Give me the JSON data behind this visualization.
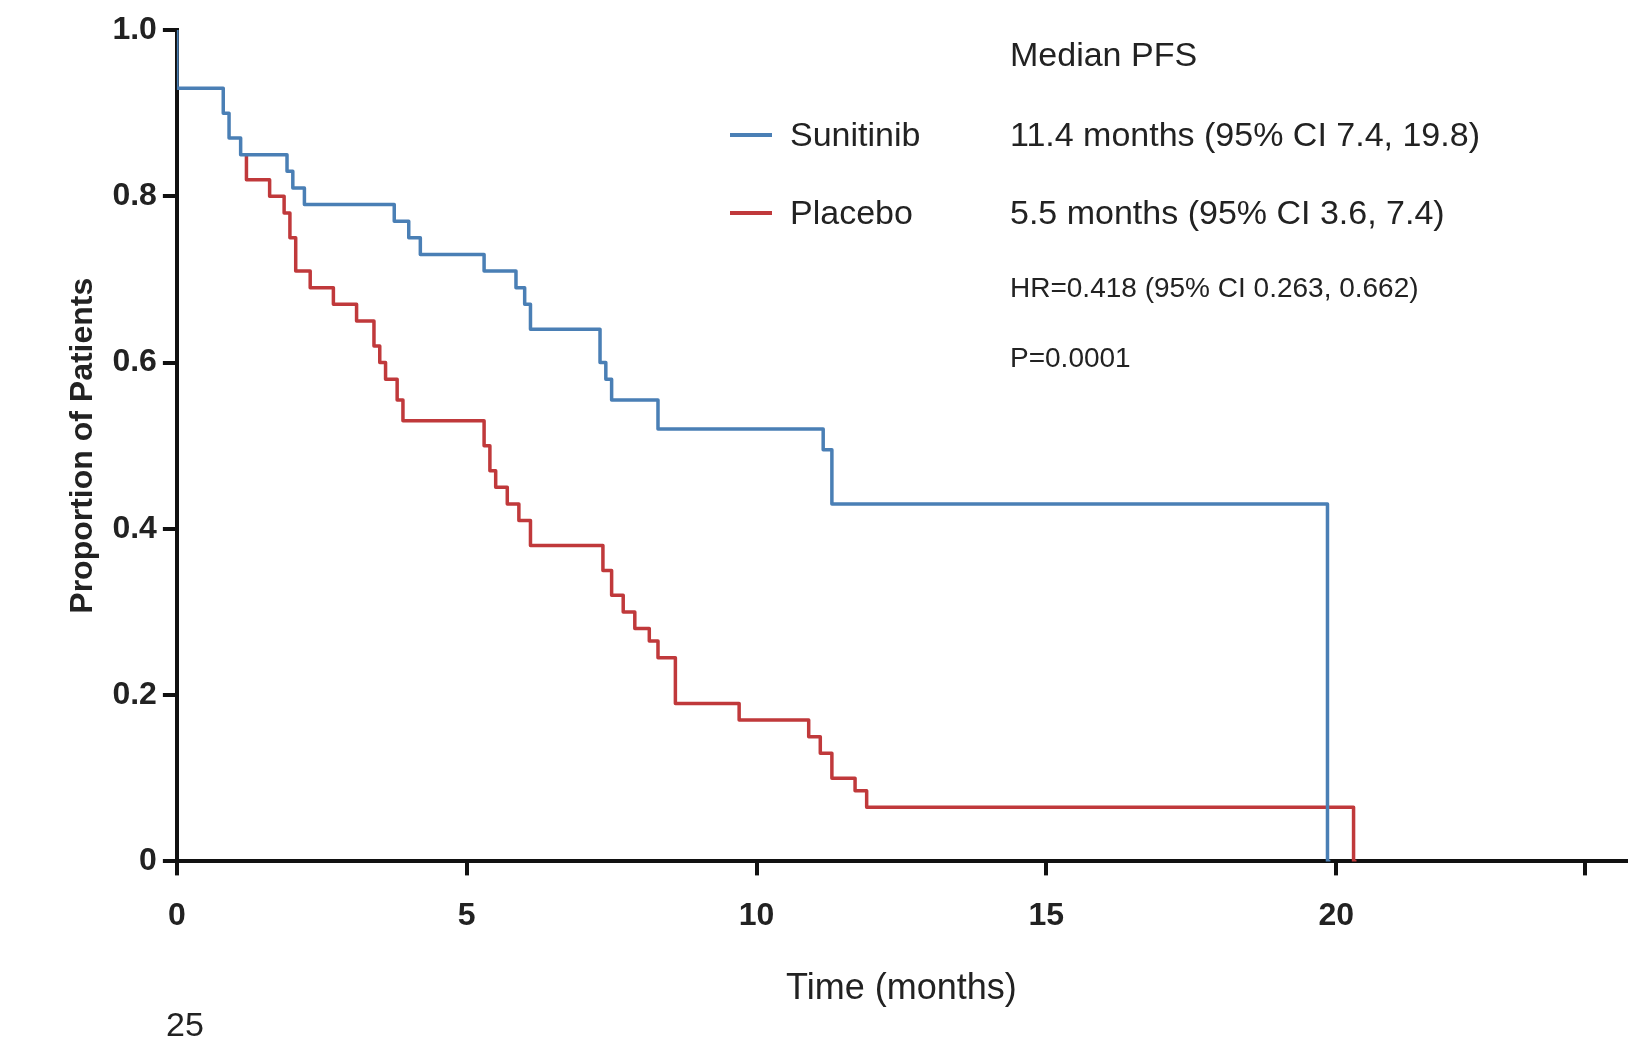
{
  "chart_data": {
    "type": "step",
    "xlabel": "Time (months)",
    "ylabel": "Proportion of Patients",
    "xlim": [
      0,
      25
    ],
    "xticks": [
      0,
      5,
      10,
      15,
      20,
      {
        "value": 24.3,
        "label": null
      }
    ],
    "ylim": [
      0,
      1
    ],
    "yticks": [
      0,
      0.2,
      0.4,
      0.6,
      0.8,
      {
        "value": 1,
        "label": "1.0"
      }
    ],
    "legend": "top",
    "grid": false,
    "series": [
      {
        "name": "Sunitinib",
        "color": "#4a7fb5",
        "x": [
          0,
          0.8,
          0.9,
          1.1,
          1.9,
          2.0,
          2.2,
          3.75,
          4.0,
          4.2,
          5.3,
          5.85,
          6.0,
          6.1,
          7.3,
          7.4,
          7.5,
          8.3,
          11.15,
          11.3,
          13.65,
          19.85,
          19.9
        ],
        "values": [
          1,
          0.93,
          0.9,
          0.87,
          0.85,
          0.83,
          0.81,
          0.79,
          0.77,
          0.75,
          0.73,
          0.71,
          0.69,
          0.67,
          0.64,
          0.6,
          0.58,
          0.555,
          0.52,
          0.495,
          0.43,
          0.43,
          0
        ]
      },
      {
        "name": "Placebo",
        "color": "#c0393b",
        "x": [
          1.2,
          1.6,
          1.85,
          1.95,
          2.05,
          2.3,
          2.7,
          3.1,
          3.4,
          3.5,
          3.6,
          3.8,
          3.9,
          5.3,
          5.4,
          5.5,
          5.7,
          5.9,
          6.1,
          7.35,
          7.5,
          7.7,
          7.9,
          8.15,
          8.3,
          8.6,
          9.7,
          10.9,
          11.1,
          11.3,
          11.7,
          11.9,
          12.1,
          20.3,
          20.35
        ],
        "values": [
          0.85,
          0.82,
          0.8,
          0.78,
          0.75,
          0.71,
          0.69,
          0.67,
          0.65,
          0.62,
          0.6,
          0.58,
          0.555,
          0.53,
          0.5,
          0.47,
          0.45,
          0.43,
          0.41,
          0.38,
          0.35,
          0.32,
          0.3,
          0.28,
          0.265,
          0.245,
          0.19,
          0.17,
          0.15,
          0.13,
          0.1,
          0.085,
          0.065,
          0.065,
          0
        ]
      }
    ],
    "annotations": [
      "Median PFS",
      "11.4 months  (95% CI 7.4, 19.8)",
      "5.5 months  (95% CI 3.6, 7.4)",
      "HR=0.418  (95% CI 0.263, 0.662)",
      "P=0.0001",
      "25"
    ]
  }
}
